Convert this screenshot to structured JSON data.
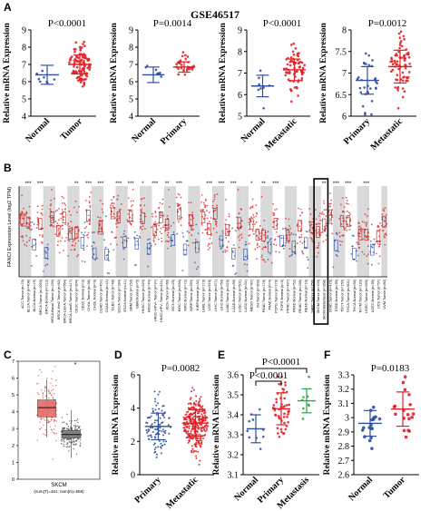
{
  "figure": {
    "dataset_title": "GSE46517",
    "panel_letters": [
      "A",
      "B",
      "C",
      "D",
      "E",
      "F"
    ]
  },
  "chart_data": [
    {
      "id": "A1",
      "type": "scatter",
      "panel": "A",
      "ylabel": "Relative mRNA Expression",
      "ylim": [
        4,
        9
      ],
      "yticks": [
        4,
        5,
        6,
        7,
        8,
        9
      ],
      "categories": [
        "Normal",
        "Tumor"
      ],
      "annotation": "P<0.0001",
      "series": [
        {
          "category": "Normal",
          "mean": 6.4,
          "sd": 0.55,
          "n": 8,
          "color": "#2e4f9e"
        },
        {
          "category": "Tumor",
          "mean": 7.0,
          "sd": 0.55,
          "n": 100,
          "color": "#e21f26"
        }
      ]
    },
    {
      "id": "A2",
      "type": "scatter",
      "panel": "A",
      "ylabel": "Relative mRNA Expression",
      "ylim": [
        4,
        9
      ],
      "yticks": [
        4,
        5,
        6,
        7,
        8,
        9
      ],
      "categories": [
        "Normal",
        "Primary"
      ],
      "annotation": "P=0.0014",
      "series": [
        {
          "category": "Normal",
          "mean": 6.4,
          "sd": 0.45,
          "n": 8,
          "color": "#2e4f9e"
        },
        {
          "category": "Primary",
          "mean": 6.85,
          "sd": 0.3,
          "n": 30,
          "color": "#e21f26"
        }
      ]
    },
    {
      "id": "A3",
      "type": "scatter",
      "panel": "A",
      "ylabel": "Relative mRNA Expression",
      "ylim": [
        5,
        9
      ],
      "yticks": [
        5,
        6,
        7,
        8,
        9
      ],
      "categories": [
        "Normal",
        "Metastatic"
      ],
      "annotation": "P<0.0001",
      "series": [
        {
          "category": "Normal",
          "mean": 6.4,
          "sd": 0.5,
          "n": 8,
          "color": "#2e4f9e"
        },
        {
          "category": "Metastatic",
          "mean": 7.15,
          "sd": 0.5,
          "n": 70,
          "color": "#e21f26"
        }
      ]
    },
    {
      "id": "A4",
      "type": "scatter",
      "panel": "A",
      "ylabel": "Relative mRNA Expression",
      "ylim": [
        6,
        8
      ],
      "yticks": [
        6.0,
        6.5,
        7.0,
        7.5,
        8.0
      ],
      "categories": [
        "Primary",
        "Metastatic"
      ],
      "annotation": "P=0.0012",
      "series": [
        {
          "category": "Primary",
          "mean": 6.83,
          "sd": 0.32,
          "n": 30,
          "color": "#2e4f9e"
        },
        {
          "category": "Metastatic",
          "mean": 7.15,
          "sd": 0.38,
          "n": 70,
          "color": "#e21f26"
        }
      ]
    },
    {
      "id": "B",
      "type": "box",
      "panel": "B",
      "ylabel": "FANCI Expression Level (log2 TPM)",
      "categories": [
        "ACC.Tumor (n=79)",
        "BLCA.Tumor (n=408)",
        "BLCA.Normal (n=19)",
        "BRCA.Tumor (n=1093)",
        "BRCA.Normal (n=112)",
        "BRCA-Basal.Tumor (n=190)",
        "BRCA-Her2.Tumor (n=82)",
        "BRCA-LumA.Tumor (n=564)",
        "BRCA-LumB.Tumor (n=217)",
        "CESC.Tumor (n=304)",
        "CESC.Normal (n=3)",
        "CHOL.Tumor (n=36)",
        "CHOL.Normal (n=9)",
        "COAD.Tumor (n=457)",
        "COAD.Normal (n=41)",
        "DLBC.Tumor (n=48)",
        "ESCA.Tumor (n=184)",
        "ESCA.Normal (n=11)",
        "GBM.Tumor (n=153)",
        "GBM.Normal (n=5)",
        "HNSC.Tumor (n=520)",
        "HNSC.Normal (n=44)",
        "HNSC-HPV+.Tumor (n=97)",
        "HNSC-HPV-.Tumor (n=421)",
        "KICH.Tumor (n=66)",
        "KICH.Normal (n=25)",
        "KIRC.Tumor (n=533)",
        "KIRC.Normal (n=72)",
        "KIRP.Tumor (n=290)",
        "KIRP.Normal (n=32)",
        "LAML.Tumor (n=173)",
        "LGG.Tumor (n=516)",
        "LIHC.Tumor (n=371)",
        "LIHC.Normal (n=50)",
        "LUAD.Tumor (n=515)",
        "LUAD.Normal (n=59)",
        "LUSC.Tumor (n=501)",
        "LUSC.Normal (n=51)",
        "MESO.Tumor (n=87)",
        "OV.Tumor (n=303)",
        "PAAD.Tumor (n=178)",
        "PAAD.Normal (n=4)",
        "PCPG.Tumor (n=179)",
        "PCPG.Normal (n=3)",
        "PRAD.Tumor (n=497)",
        "PRAD.Normal (n=52)",
        "READ.Tumor (n=166)",
        "READ.Normal (n=10)",
        "SARC.Tumor (n=259)",
        "SKCM.Tumor (n=103)",
        "SKCM.Metastasis (n=368)",
        "STAD.Tumor (n=415)",
        "STAD.Normal (n=35)",
        "TGCT.Tumor (n=150)",
        "THCA.Tumor (n=501)",
        "THCA.Normal (n=59)",
        "THYM.Tumor (n=120)",
        "UCEC.Tumor (n=545)",
        "UCEC.Normal (n=35)",
        "UCS.Tumor (n=57)",
        "UVM.Tumor (n=80)"
      ],
      "significance": [
        "",
        "***",
        "",
        "***",
        "",
        "",
        "",
        "",
        "",
        "**",
        "",
        "***",
        "",
        "***",
        "",
        "",
        "***",
        "",
        "***",
        "",
        "*",
        "",
        "***",
        "",
        "**",
        "",
        "***",
        "",
        "",
        "",
        "",
        "***",
        "",
        "***",
        "",
        "***",
        "",
        "",
        "*",
        "",
        "**",
        "",
        "***",
        "",
        "",
        "",
        "",
        "",
        "",
        "",
        "**",
        "",
        "***",
        "",
        "***",
        "",
        "",
        "***",
        "",
        "",
        ""
      ],
      "highlight": [
        "SKCM.Tumor (n=103)",
        "SKCM.Metastasis (n=368)"
      ]
    },
    {
      "id": "C",
      "type": "box",
      "panel": "C",
      "ylim": [
        0,
        7
      ],
      "yticks": [
        0,
        1,
        2,
        3,
        4,
        5,
        6,
        7
      ],
      "xlabel": "SKCM",
      "footnote": "(num(T)=461; num(N)=558)",
      "series": [
        {
          "name": "Tumor",
          "median": 4.25,
          "q1": 3.7,
          "q3": 4.7,
          "color": "#e56b6b"
        },
        {
          "name": "Normal",
          "median": 2.65,
          "q1": 2.45,
          "q3": 2.9,
          "color": "#7a7a7a"
        }
      ]
    },
    {
      "id": "D",
      "type": "scatter",
      "panel": "D",
      "ylabel": "Relative mRNA Expression",
      "ylim": [
        0,
        6
      ],
      "yticks": [
        0,
        2,
        4,
        6
      ],
      "categories": [
        "Primary",
        "Metastatic"
      ],
      "annotation": "P=0.0082",
      "series": [
        {
          "category": "Primary",
          "mean": 2.9,
          "sd": 0.8,
          "n": 100,
          "color": "#2e4f9e"
        },
        {
          "category": "Metastatic",
          "mean": 3.1,
          "sd": 0.8,
          "n": 350,
          "color": "#e21f26"
        }
      ]
    },
    {
      "id": "E",
      "type": "scatter",
      "panel": "E",
      "ylabel": "Relative mRNA Expression",
      "ylim": [
        3.1,
        3.6
      ],
      "yticks": [
        3.1,
        3.2,
        3.3,
        3.4,
        3.5,
        3.6
      ],
      "categories": [
        "Normal",
        "Primary",
        "Metastasis"
      ],
      "annotations": [
        "P<0.0001",
        "P<0.0001"
      ],
      "series": [
        {
          "category": "Normal",
          "mean": 3.33,
          "sd": 0.07,
          "n": 10,
          "color": "#2e4f9e"
        },
        {
          "category": "Primary",
          "mean": 3.43,
          "sd": 0.08,
          "n": 50,
          "color": "#e21f26"
        },
        {
          "category": "Metastasis",
          "mean": 3.47,
          "sd": 0.06,
          "n": 8,
          "color": "#27a34a"
        }
      ]
    },
    {
      "id": "F",
      "type": "scatter",
      "panel": "F",
      "ylabel": "Relative mRNA Expression",
      "ylim": [
        2.6,
        3.3
      ],
      "yticks": [
        2.6,
        2.7,
        2.8,
        2.9,
        3.0,
        3.1,
        3.2,
        3.3
      ],
      "categories": [
        "Normal",
        "Tumor"
      ],
      "annotation": "P=0.0183",
      "series": [
        {
          "category": "Normal",
          "mean": 2.96,
          "sd": 0.09,
          "n": 18,
          "color": "#2e4f9e"
        },
        {
          "category": "Tumor",
          "mean": 3.06,
          "sd": 0.12,
          "n": 18,
          "color": "#e21f26"
        }
      ]
    }
  ]
}
